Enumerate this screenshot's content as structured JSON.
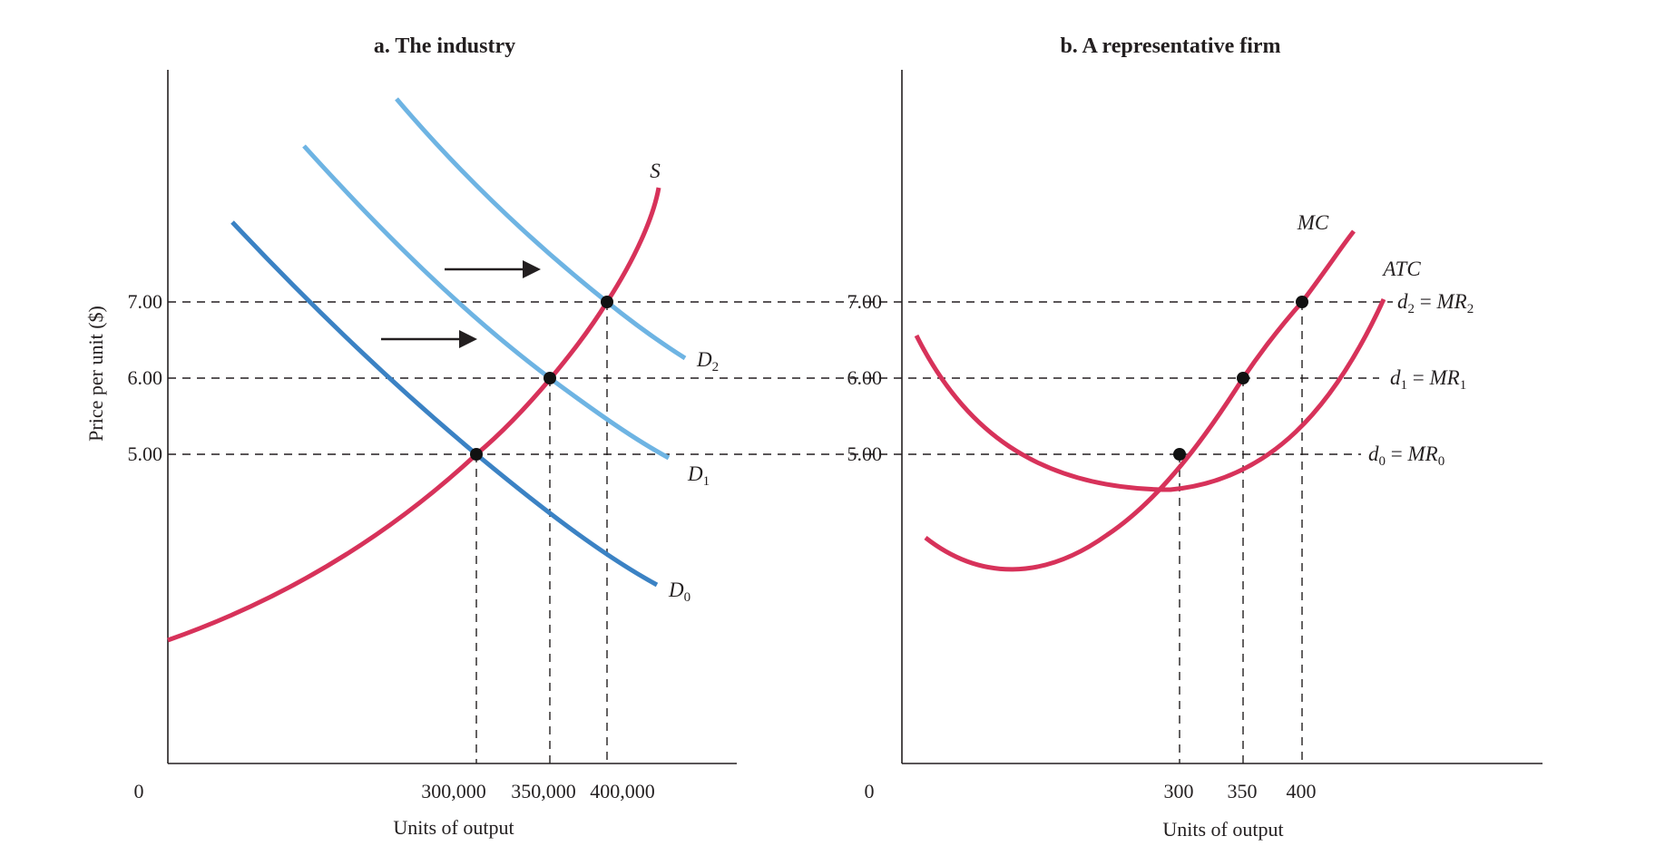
{
  "chart_data": [
    {
      "type": "line",
      "title": "a. The industry",
      "xlabel": "Units of output",
      "ylabel": "Price per unit ($)",
      "origin_label": "0",
      "x_ticks": [
        "300,000",
        "350,000",
        "400,000"
      ],
      "x_tick_values": [
        300000,
        350000,
        400000
      ],
      "y_ticks": [
        "5.00",
        "6.00",
        "7.00"
      ],
      "y_tick_values": [
        5,
        6,
        7
      ],
      "xlim": [
        0,
        500000
      ],
      "ylim": [
        0,
        8.9
      ],
      "grid": false,
      "series": [
        {
          "name": "S",
          "color": "#d7325a",
          "points": [
            [
              0,
              1.65
            ],
            [
              50000,
              2.35
            ],
            [
              100000,
              3.05
            ],
            [
              150000,
              3.65
            ],
            [
              200000,
              4.2
            ],
            [
              250000,
              4.62
            ],
            [
              300000,
              5.0
            ],
            [
              350000,
              6.0
            ],
            [
              375000,
              6.55
            ],
            [
              400000,
              7.0
            ],
            [
              425000,
              7.65
            ],
            [
              440000,
              8.35
            ]
          ]
        },
        {
          "name": "D0",
          "label_main": "D",
          "label_sub": "0",
          "color": "#3b82c4",
          "points": [
            [
              57000,
              7.1
            ],
            [
              100000,
              6.45
            ],
            [
              150000,
              5.75
            ],
            [
              200000,
              5.25
            ],
            [
              250000,
              4.65
            ],
            [
              300000,
              5.0
            ],
            [
              300000,
              5.0
            ]
          ]
        },
        {
          "name": "D1",
          "label_main": "D",
          "label_sub": "1",
          "color": "#6eb4e3",
          "points": [
            [
              120000,
              8.05
            ],
            [
              170000,
              7.2
            ],
            [
              220000,
              6.55
            ],
            [
              260000,
              6.1
            ],
            [
              300000,
              5.7
            ],
            [
              350000,
              6.0
            ],
            [
              430000,
              5.0
            ]
          ]
        },
        {
          "name": "D2",
          "label_main": "D",
          "label_sub": "2",
          "color": "#6eb4e3",
          "points": [
            [
              197000,
              8.65
            ],
            [
              250000,
              7.95
            ],
            [
              300000,
              7.3
            ],
            [
              350000,
              6.75
            ],
            [
              400000,
              7.0
            ],
            [
              443000,
              6.3
            ]
          ]
        }
      ],
      "equilibria": [
        [
          300000,
          5.0
        ],
        [
          350000,
          6.0
        ],
        [
          400000,
          7.0
        ]
      ]
    },
    {
      "type": "line",
      "title": "b. A representative firm",
      "xlabel": "Units of output",
      "origin_label": "0",
      "x_ticks": [
        "300",
        "350",
        "400"
      ],
      "x_tick_values": [
        300,
        350,
        400
      ],
      "y_ticks": [
        "5.00",
        "6.00",
        "7.00"
      ],
      "y_tick_values": [
        5,
        6,
        7
      ],
      "xlim": [
        0,
        500
      ],
      "ylim": [
        0,
        8.9
      ],
      "grid": false,
      "series": [
        {
          "name": "MC",
          "color": "#d7325a",
          "points": [
            [
              15,
              2.95
            ],
            [
              50,
              2.6
            ],
            [
              78,
              2.55
            ],
            [
              130,
              2.95
            ],
            [
              190,
              3.7
            ],
            [
              245,
              4.5
            ],
            [
              300,
              5.0
            ],
            [
              350,
              6.0
            ],
            [
              400,
              7.0
            ],
            [
              435,
              7.85
            ]
          ]
        },
        {
          "name": "ATC",
          "color": "#d7325a",
          "points": [
            [
              10,
              5.75
            ],
            [
              40,
              5.15
            ],
            [
              80,
              4.55
            ],
            [
              130,
              4.15
            ],
            [
              180,
              4.0
            ],
            [
              225,
              3.95
            ],
            [
              275,
              4.05
            ],
            [
              320,
              4.3
            ],
            [
              360,
              4.75
            ],
            [
              400,
              5.5
            ],
            [
              440,
              6.5
            ],
            [
              470,
              7.1
            ]
          ]
        }
      ],
      "demand_lines": [
        {
          "y": 7.0,
          "label_main": "d",
          "label_sub": "2",
          "rhs_main": "MR",
          "rhs_sub": "2"
        },
        {
          "y": 6.0,
          "label_main": "d",
          "label_sub": "1",
          "rhs_main": "MR",
          "rhs_sub": "1"
        },
        {
          "y": 5.0,
          "label_main": "d",
          "label_sub": "0",
          "rhs_main": "MR",
          "rhs_sub": "0"
        }
      ],
      "equilibria": [
        [
          300,
          5.0
        ],
        [
          350,
          6.0
        ],
        [
          400,
          7.0
        ]
      ]
    }
  ],
  "labels": {
    "s": "S",
    "mc": "MC",
    "atc": "ATC",
    "d": "D",
    "d0_sub": "0",
    "d1_sub": "1",
    "d2_sub": "2"
  }
}
